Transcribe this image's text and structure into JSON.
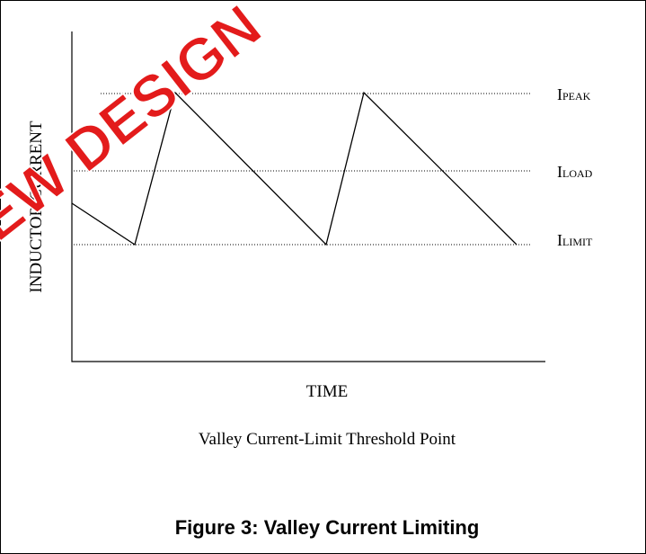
{
  "figure": {
    "y_axis_label": "INDUCTOR CURRENT",
    "x_axis_label": "TIME",
    "levels": [
      {
        "main": "I",
        "sub": "PEAK"
      },
      {
        "main": "I",
        "sub": "LOAD"
      },
      {
        "main": "I",
        "sub": "LIMIT"
      }
    ],
    "description": "Valley Current-Limit Threshold Point",
    "caption": "Figure 3: Valley Current Limiting",
    "watermark": "NEW DESIGN"
  }
}
